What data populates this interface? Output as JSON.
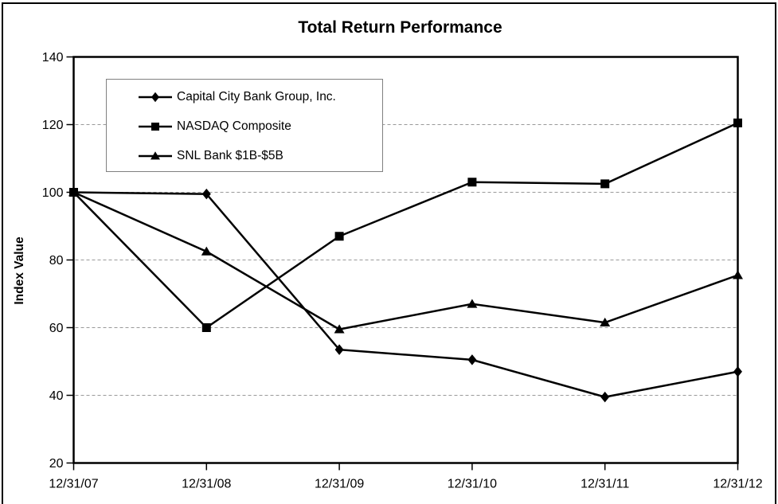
{
  "chart_data": {
    "type": "line",
    "title": "Total Return Performance",
    "xlabel": "",
    "ylabel": "Index Value",
    "categories": [
      "12/31/07",
      "12/31/08",
      "12/31/09",
      "12/31/10",
      "12/31/11",
      "12/31/12"
    ],
    "series": [
      {
        "name": "Capital City Bank Group, Inc.",
        "marker": "diamond",
        "values": [
          100,
          99.5,
          53.5,
          50.5,
          39.5,
          47
        ]
      },
      {
        "name": "NASDAQ Composite",
        "marker": "square",
        "values": [
          100,
          60,
          87,
          103,
          102.5,
          120.5
        ]
      },
      {
        "name": "SNL Bank $1B-$5B",
        "marker": "triangle",
        "values": [
          100,
          82.5,
          59.5,
          67,
          61.5,
          75.5
        ]
      }
    ],
    "ylim": [
      20,
      140
    ],
    "yticks": [
      20,
      40,
      60,
      80,
      100,
      120,
      140
    ],
    "grid": "horizontal-dashed",
    "legend_position": "top-left-inside",
    "colors": {
      "line": "#000000",
      "marker": "#000000",
      "grid": "#999999",
      "axis": "#000000",
      "legend_border": "#808080",
      "background": "#ffffff",
      "text": "#000000"
    }
  }
}
